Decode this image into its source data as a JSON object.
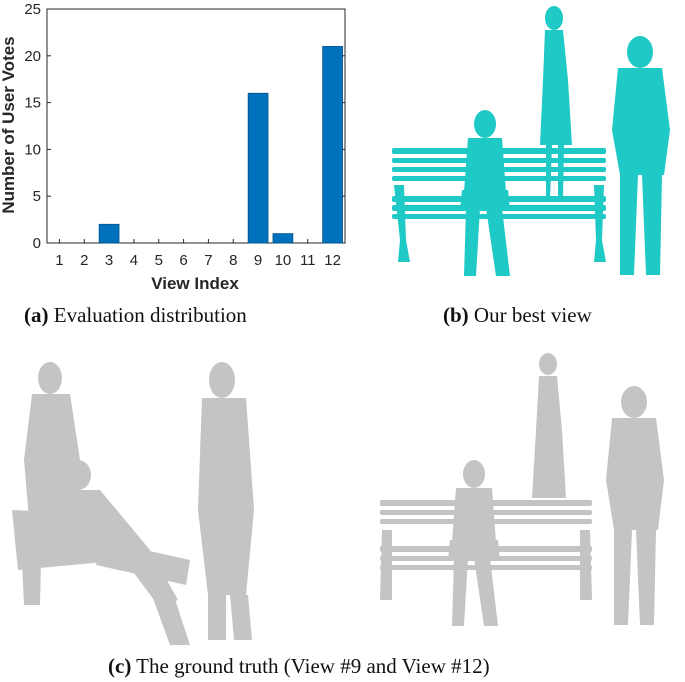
{
  "chart_data": {
    "type": "bar",
    "categories": [
      "1",
      "2",
      "3",
      "4",
      "5",
      "6",
      "7",
      "8",
      "9",
      "10",
      "11",
      "12"
    ],
    "values": [
      0,
      0,
      2,
      0,
      0,
      0,
      0,
      0,
      16,
      1,
      0,
      21
    ],
    "xlabel": "View Index",
    "ylabel": "Number of User Votes",
    "ylim": [
      0,
      25
    ],
    "yticks": [
      0,
      5,
      10,
      15,
      20,
      25
    ],
    "grid": false,
    "bar_color": "#0072BD"
  },
  "captions": {
    "a": {
      "letter": "(a)",
      "text": " Evaluation distribution"
    },
    "b": {
      "letter": "(b)",
      "text": " Our best view"
    },
    "c": {
      "letter": "(c)",
      "text": " The ground truth (View #9 and View #12)"
    }
  },
  "colors": {
    "best_view": "#1fc9c6",
    "ground_truth": "#c4c4c4"
  }
}
